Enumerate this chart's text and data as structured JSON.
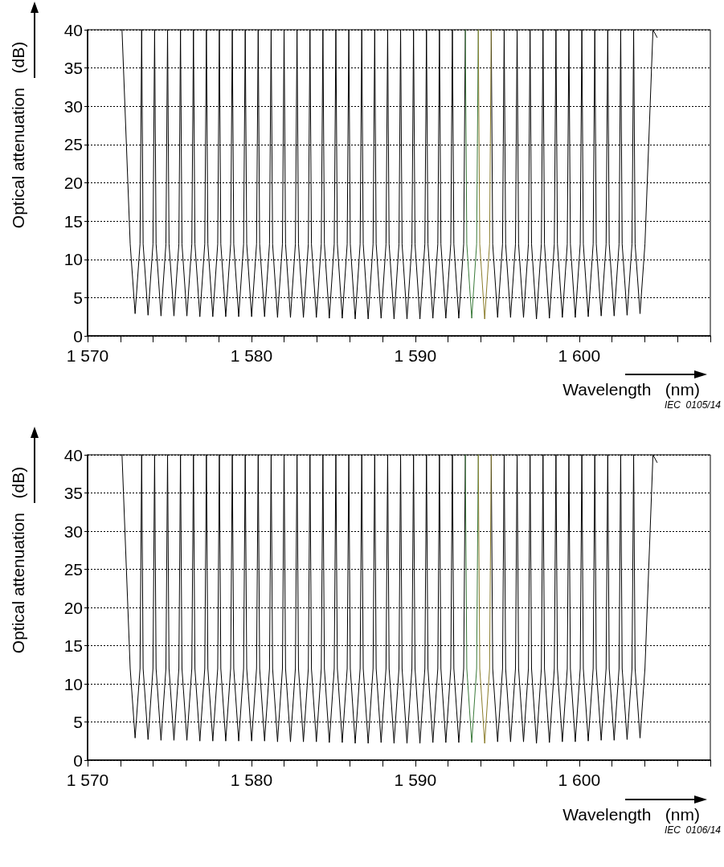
{
  "chart_data": [
    {
      "type": "line",
      "xlabel": "Wavelength   (nm)",
      "ylabel": "Optical attenuation   (dB)",
      "annotations": [
        "IEC  0105/14"
      ],
      "xlim": [
        1570,
        1608
      ],
      "xticks": [
        {
          "value": 1570,
          "label": "1 570"
        },
        {
          "value": 1572,
          "label": null
        },
        {
          "value": 1574,
          "label": null
        },
        {
          "value": 1576,
          "label": null
        },
        {
          "value": 1578,
          "label": null
        },
        {
          "value": 1580,
          "label": "1 580"
        },
        {
          "value": 1582,
          "label": null
        },
        {
          "value": 1584,
          "label": null
        },
        {
          "value": 1586,
          "label": null
        },
        {
          "value": 1588,
          "label": null
        },
        {
          "value": 1590,
          "label": "1 590"
        },
        {
          "value": 1592,
          "label": null
        },
        {
          "value": 1594,
          "label": null
        },
        {
          "value": 1596,
          "label": null
        },
        {
          "value": 1598,
          "label": null
        },
        {
          "value": 1600,
          "label": "1 600"
        },
        {
          "value": 1602,
          "label": null
        },
        {
          "value": 1604,
          "label": null
        },
        {
          "value": 1606,
          "label": null
        },
        {
          "value": 1608,
          "label": null
        }
      ],
      "ylim": [
        0,
        40
      ],
      "yticks": [
        0,
        5,
        10,
        15,
        20,
        25,
        30,
        35,
        40
      ],
      "grid": "y",
      "line_style": "solid",
      "series": [
        {
          "color": "#000000",
          "x": [
            1572.1,
            1572.6,
            1572.9,
            1573.2,
            1573.3,
            1573.39,
            1573.69,
            1573.99,
            1574.09,
            1574.18,
            1574.48,
            1574.78,
            1574.88,
            1574.97,
            1575.27,
            1575.57,
            1575.67,
            1575.76,
            1576.06,
            1576.36,
            1576.46,
            1576.55,
            1576.85,
            1577.15,
            1577.25,
            1577.34,
            1577.64,
            1577.94,
            1578.04,
            1578.13,
            1578.43,
            1578.73,
            1578.83,
            1578.92,
            1579.22,
            1579.52,
            1579.62,
            1579.71,
            1580.01,
            1580.31,
            1580.41,
            1580.5,
            1580.8,
            1581.1,
            1581.2,
            1581.29,
            1581.59,
            1581.89,
            1581.99,
            1582.08,
            1582.38,
            1582.68,
            1582.78,
            1582.87,
            1583.17,
            1583.47,
            1583.57,
            1583.66,
            1583.96,
            1584.26,
            1584.36,
            1584.45,
            1584.75,
            1585.05,
            1585.15,
            1585.24,
            1585.54,
            1585.84,
            1585.94,
            1586.03,
            1586.33,
            1586.63,
            1586.73,
            1586.82,
            1587.12,
            1587.42,
            1587.52,
            1587.61,
            1587.91,
            1588.21,
            1588.31,
            1588.4,
            1588.7,
            1589.0,
            1589.1,
            1589.19,
            1589.49,
            1589.79,
            1589.89,
            1589.98,
            1590.28,
            1590.58,
            1590.68,
            1590.77,
            1591.07,
            1591.37,
            1591.47,
            1591.56,
            1591.86,
            1592.16,
            1592.26,
            1592.35,
            1592.65,
            1592.95,
            1593.05,
            1593.44,
            1594.63,
            1594.72,
            1595.02,
            1595.32,
            1595.42,
            1595.51,
            1595.81,
            1596.11,
            1596.21,
            1596.3,
            1596.6,
            1596.9,
            1597.0,
            1597.09,
            1597.39,
            1597.69,
            1597.79,
            1597.88,
            1598.18,
            1598.48,
            1598.58,
            1598.67,
            1598.97,
            1599.27,
            1599.37,
            1599.46,
            1599.76,
            1600.06,
            1600.16,
            1600.25,
            1600.55,
            1600.85,
            1600.95,
            1601.04,
            1601.34,
            1601.64,
            1601.74,
            1601.83,
            1602.13,
            1602.43,
            1602.53,
            1602.62,
            1602.92,
            1603.22,
            1603.32,
            1603.41,
            1603.71,
            1604.01,
            1604.5,
            1604.75
          ],
          "values": [
            40,
            12,
            2.9,
            12,
            40,
            12,
            2.7,
            12,
            40,
            12,
            2.6,
            12,
            40,
            12,
            2.6,
            12,
            40,
            12,
            2.6,
            12,
            40,
            12,
            2.5,
            12,
            40,
            12,
            2.5,
            12,
            40,
            12,
            2.5,
            12,
            40,
            12,
            2.5,
            12,
            40,
            12,
            2.5,
            12,
            40,
            12,
            2.5,
            12,
            40,
            12,
            2.4,
            12,
            40,
            12,
            2.4,
            12,
            40,
            12,
            2.4,
            12,
            40,
            12,
            2.4,
            12,
            40,
            12,
            2.3,
            12,
            40,
            12,
            2.3,
            12,
            40,
            12,
            2.2,
            12,
            40,
            12,
            2.2,
            12,
            40,
            12,
            2.3,
            12,
            40,
            12,
            2.2,
            12,
            40,
            12,
            2.2,
            12,
            40,
            12,
            2.2,
            12,
            40,
            12,
            2.3,
            12,
            40,
            12,
            2.3,
            12,
            40,
            12,
            2.3,
            12,
            40,
            null,
            40,
            12,
            2.4,
            12,
            40,
            12,
            2.4,
            12,
            40,
            12,
            2.4,
            12,
            40,
            12,
            2.2,
            12,
            40,
            12,
            2.3,
            12,
            40,
            12,
            2.4,
            12,
            40,
            12,
            2.4,
            12,
            40,
            12,
            2.5,
            12,
            40,
            12,
            2.6,
            12,
            40,
            12,
            2.6,
            12,
            40,
            12,
            2.7,
            12,
            40,
            12,
            2.9,
            12,
            40,
            39
          ]
        },
        {
          "color": "#3a7a3a",
          "x": [
            1593.05,
            1593.14,
            1593.44,
            1593.74,
            1593.84
          ],
          "values": [
            40,
            12,
            2.3,
            12,
            40
          ]
        },
        {
          "color": "#8b7d2b",
          "x": [
            1593.84,
            1593.93,
            1594.23,
            1594.53,
            1594.63
          ],
          "values": [
            40,
            12,
            2.2,
            12,
            40
          ]
        }
      ]
    },
    {
      "type": "line",
      "xlabel": "Wavelength   (nm)",
      "ylabel": "Optical attenuation   (dB)",
      "annotations": [
        "IEC  0106/14"
      ],
      "xlim": [
        1570,
        1608
      ],
      "xticks": [
        {
          "value": 1570,
          "label": "1 570"
        },
        {
          "value": 1572,
          "label": null
        },
        {
          "value": 1574,
          "label": null
        },
        {
          "value": 1576,
          "label": null
        },
        {
          "value": 1578,
          "label": null
        },
        {
          "value": 1580,
          "label": "1 580"
        },
        {
          "value": 1582,
          "label": null
        },
        {
          "value": 1584,
          "label": null
        },
        {
          "value": 1586,
          "label": null
        },
        {
          "value": 1588,
          "label": null
        },
        {
          "value": 1590,
          "label": "1 590"
        },
        {
          "value": 1592,
          "label": null
        },
        {
          "value": 1594,
          "label": null
        },
        {
          "value": 1596,
          "label": null
        },
        {
          "value": 1598,
          "label": null
        },
        {
          "value": 1600,
          "label": "1 600"
        },
        {
          "value": 1602,
          "label": null
        },
        {
          "value": 1604,
          "label": null
        },
        {
          "value": 1606,
          "label": null
        },
        {
          "value": 1608,
          "label": null
        }
      ],
      "ylim": [
        0,
        40
      ],
      "yticks": [
        0,
        5,
        10,
        15,
        20,
        25,
        30,
        35,
        40
      ],
      "grid": "y",
      "line_style": "solid",
      "series": [
        {
          "color": "#000000",
          "x": [
            1572.1,
            1572.6,
            1572.9,
            1573.2,
            1573.3,
            1573.39,
            1573.69,
            1573.99,
            1574.09,
            1574.18,
            1574.48,
            1574.78,
            1574.88,
            1574.97,
            1575.27,
            1575.57,
            1575.67,
            1575.76,
            1576.06,
            1576.36,
            1576.46,
            1576.55,
            1576.85,
            1577.15,
            1577.25,
            1577.34,
            1577.64,
            1577.94,
            1578.04,
            1578.13,
            1578.43,
            1578.73,
            1578.83,
            1578.92,
            1579.22,
            1579.52,
            1579.62,
            1579.71,
            1580.01,
            1580.31,
            1580.41,
            1580.5,
            1580.8,
            1581.1,
            1581.2,
            1581.29,
            1581.59,
            1581.89,
            1581.99,
            1582.08,
            1582.38,
            1582.68,
            1582.78,
            1582.87,
            1583.17,
            1583.47,
            1583.57,
            1583.66,
            1583.96,
            1584.26,
            1584.36,
            1584.45,
            1584.75,
            1585.05,
            1585.15,
            1585.24,
            1585.54,
            1585.84,
            1585.94,
            1586.03,
            1586.33,
            1586.63,
            1586.73,
            1586.82,
            1587.12,
            1587.42,
            1587.52,
            1587.61,
            1587.91,
            1588.21,
            1588.31,
            1588.4,
            1588.7,
            1589.0,
            1589.1,
            1589.19,
            1589.49,
            1589.79,
            1589.89,
            1589.98,
            1590.28,
            1590.58,
            1590.68,
            1590.77,
            1591.07,
            1591.37,
            1591.47,
            1591.56,
            1591.86,
            1592.16,
            1592.26,
            1592.35,
            1592.65,
            1592.95,
            1593.05,
            1593.44,
            1594.63,
            1594.72,
            1595.02,
            1595.32,
            1595.42,
            1595.51,
            1595.81,
            1596.11,
            1596.21,
            1596.3,
            1596.6,
            1596.9,
            1597.0,
            1597.09,
            1597.39,
            1597.69,
            1597.79,
            1597.88,
            1598.18,
            1598.48,
            1598.58,
            1598.67,
            1598.97,
            1599.27,
            1599.37,
            1599.46,
            1599.76,
            1600.06,
            1600.16,
            1600.25,
            1600.55,
            1600.85,
            1600.95,
            1601.04,
            1601.34,
            1601.64,
            1601.74,
            1601.83,
            1602.13,
            1602.43,
            1602.53,
            1602.62,
            1602.92,
            1603.22,
            1603.32,
            1603.41,
            1603.71,
            1604.01,
            1604.5,
            1604.75
          ],
          "values": [
            40,
            12,
            2.9,
            12,
            40,
            12,
            2.7,
            12,
            40,
            12,
            2.6,
            12,
            40,
            12,
            2.6,
            12,
            40,
            12,
            2.6,
            12,
            40,
            12,
            2.5,
            12,
            40,
            12,
            2.5,
            12,
            40,
            12,
            2.5,
            12,
            40,
            12,
            2.5,
            12,
            40,
            12,
            2.5,
            12,
            40,
            12,
            2.5,
            12,
            40,
            12,
            2.4,
            12,
            40,
            12,
            2.4,
            12,
            40,
            12,
            2.4,
            12,
            40,
            12,
            2.4,
            12,
            40,
            12,
            2.3,
            12,
            40,
            12,
            2.3,
            12,
            40,
            12,
            2.2,
            12,
            40,
            12,
            2.2,
            12,
            40,
            12,
            2.3,
            12,
            40,
            12,
            2.2,
            12,
            40,
            12,
            2.2,
            12,
            40,
            12,
            2.2,
            12,
            40,
            12,
            2.3,
            12,
            40,
            12,
            2.3,
            12,
            40,
            12,
            2.3,
            12,
            40,
            null,
            40,
            12,
            2.4,
            12,
            40,
            12,
            2.4,
            12,
            40,
            12,
            2.4,
            12,
            40,
            12,
            2.2,
            12,
            40,
            12,
            2.3,
            12,
            40,
            12,
            2.4,
            12,
            40,
            12,
            2.4,
            12,
            40,
            12,
            2.5,
            12,
            40,
            12,
            2.6,
            12,
            40,
            12,
            2.6,
            12,
            40,
            12,
            2.7,
            12,
            40,
            12,
            2.9,
            12,
            40,
            39
          ]
        },
        {
          "color": "#3a7a3a",
          "x": [
            1593.05,
            1593.14,
            1593.44,
            1593.74,
            1593.84
          ],
          "values": [
            40,
            12,
            2.3,
            12,
            40
          ]
        },
        {
          "color": "#8b7d2b",
          "x": [
            1593.84,
            1593.93,
            1594.23,
            1594.53,
            1594.63
          ],
          "values": [
            40,
            12,
            2.2,
            12,
            40
          ]
        }
      ]
    }
  ]
}
